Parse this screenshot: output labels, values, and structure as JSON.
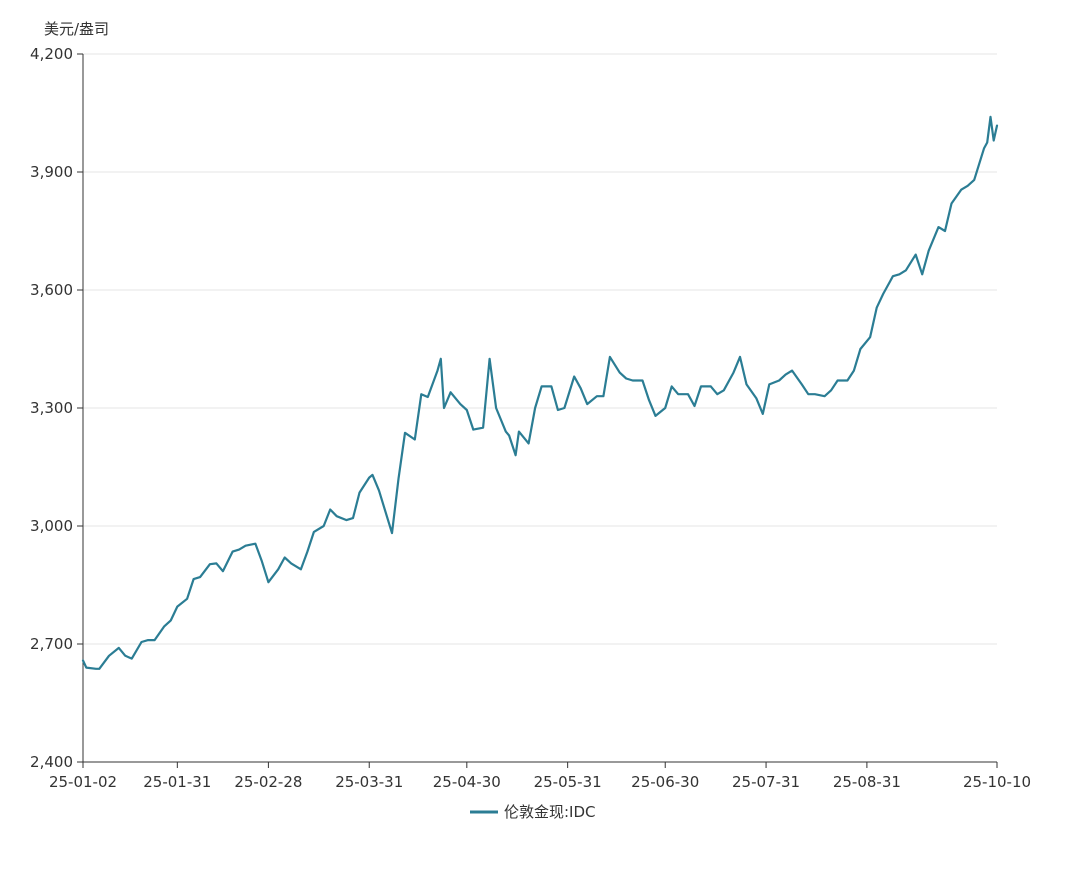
{
  "chart_data": {
    "type": "line",
    "y_unit": "美元/盎司",
    "ylim": [
      2400,
      4200
    ],
    "y_ticks": [
      "4,200",
      "3,900",
      "3,600",
      "3,300",
      "3,000",
      "2,700",
      "2,400"
    ],
    "y_tick_values": [
      4200,
      3900,
      3600,
      3300,
      3000,
      2700,
      2400
    ],
    "xlim": [
      "2025-01-02",
      "2025-10-10"
    ],
    "x_ticks": [
      "25-01-02",
      "25-01-31",
      "25-02-28",
      "25-03-31",
      "25-04-30",
      "25-05-31",
      "25-06-30",
      "25-07-31",
      "25-08-31",
      "25-10-10"
    ],
    "x_tick_dates": [
      "2025-01-02",
      "2025-01-31",
      "2025-02-28",
      "2025-03-31",
      "2025-04-30",
      "2025-05-31",
      "2025-06-30",
      "2025-07-31",
      "2025-08-31",
      "2025-10-10"
    ],
    "grid": "horizontal",
    "legend_position": "bottom-center",
    "colors": {
      "line": "#2b7d94",
      "grid": "#e6e6e6",
      "axis": "#333333"
    },
    "series": [
      {
        "name": "伦敦金现:IDC",
        "x": [
          "2025-01-02",
          "2025-01-03",
          "2025-01-06",
          "2025-01-07",
          "2025-01-10",
          "2025-01-13",
          "2025-01-15",
          "2025-01-17",
          "2025-01-20",
          "2025-01-22",
          "2025-01-24",
          "2025-01-27",
          "2025-01-29",
          "2025-01-31",
          "2025-02-03",
          "2025-02-05",
          "2025-02-07",
          "2025-02-10",
          "2025-02-12",
          "2025-02-14",
          "2025-02-17",
          "2025-02-19",
          "2025-02-21",
          "2025-02-24",
          "2025-02-26",
          "2025-02-28",
          "2025-03-03",
          "2025-03-05",
          "2025-03-07",
          "2025-03-10",
          "2025-03-12",
          "2025-03-14",
          "2025-03-17",
          "2025-03-19",
          "2025-03-21",
          "2025-03-24",
          "2025-03-26",
          "2025-03-28",
          "2025-03-31",
          "2025-04-01",
          "2025-04-03",
          "2025-04-07",
          "2025-04-09",
          "2025-04-11",
          "2025-04-14",
          "2025-04-16",
          "2025-04-18",
          "2025-04-21",
          "2025-04-22",
          "2025-04-23",
          "2025-04-25",
          "2025-04-28",
          "2025-04-30",
          "2025-05-02",
          "2025-05-05",
          "2025-05-07",
          "2025-05-09",
          "2025-05-12",
          "2025-05-13",
          "2025-05-15",
          "2025-05-16",
          "2025-05-19",
          "2025-05-21",
          "2025-05-23",
          "2025-05-26",
          "2025-05-28",
          "2025-05-30",
          "2025-06-02",
          "2025-06-04",
          "2025-06-06",
          "2025-06-09",
          "2025-06-11",
          "2025-06-13",
          "2025-06-16",
          "2025-06-18",
          "2025-06-20",
          "2025-06-23",
          "2025-06-25",
          "2025-06-27",
          "2025-06-30",
          "2025-07-02",
          "2025-07-04",
          "2025-07-07",
          "2025-07-09",
          "2025-07-11",
          "2025-07-14",
          "2025-07-16",
          "2025-07-18",
          "2025-07-21",
          "2025-07-23",
          "2025-07-25",
          "2025-07-28",
          "2025-07-30",
          "2025-08-01",
          "2025-08-04",
          "2025-08-06",
          "2025-08-08",
          "2025-08-11",
          "2025-08-13",
          "2025-08-15",
          "2025-08-18",
          "2025-08-20",
          "2025-08-22",
          "2025-08-25",
          "2025-08-27",
          "2025-08-29",
          "2025-09-01",
          "2025-09-03",
          "2025-09-05",
          "2025-09-08",
          "2025-09-10",
          "2025-09-12",
          "2025-09-15",
          "2025-09-17",
          "2025-09-19",
          "2025-09-22",
          "2025-09-24",
          "2025-09-26",
          "2025-09-29",
          "2025-10-01",
          "2025-10-03",
          "2025-10-06",
          "2025-10-07",
          "2025-10-08",
          "2025-10-09",
          "2025-10-10"
        ],
        "values": [
          2658,
          2640,
          2637,
          2637,
          2670,
          2690,
          2670,
          2663,
          2705,
          2710,
          2710,
          2745,
          2760,
          2795,
          2815,
          2865,
          2870,
          2903,
          2905,
          2885,
          2935,
          2940,
          2950,
          2955,
          2910,
          2857,
          2890,
          2920,
          2905,
          2890,
          2935,
          2985,
          3000,
          3042,
          3025,
          3015,
          3020,
          3085,
          3123,
          3130,
          3090,
          2982,
          3120,
          3237,
          3220,
          3335,
          3328,
          3395,
          3425,
          3300,
          3340,
          3310,
          3295,
          3245,
          3250,
          3425,
          3300,
          3240,
          3230,
          3180,
          3240,
          3210,
          3300,
          3355,
          3355,
          3295,
          3300,
          3380,
          3350,
          3310,
          3330,
          3330,
          3430,
          3390,
          3375,
          3370,
          3370,
          3320,
          3280,
          3300,
          3355,
          3335,
          3335,
          3305,
          3355,
          3355,
          3335,
          3345,
          3390,
          3430,
          3360,
          3325,
          3285,
          3360,
          3370,
          3385,
          3395,
          3360,
          3335,
          3335,
          3330,
          3345,
          3370,
          3370,
          3395,
          3450,
          3480,
          3555,
          3590,
          3635,
          3640,
          3650,
          3690,
          3640,
          3700,
          3760,
          3750,
          3820,
          3855,
          3865,
          3880,
          3960,
          3975,
          4040,
          3980,
          4018
        ]
      }
    ]
  }
}
